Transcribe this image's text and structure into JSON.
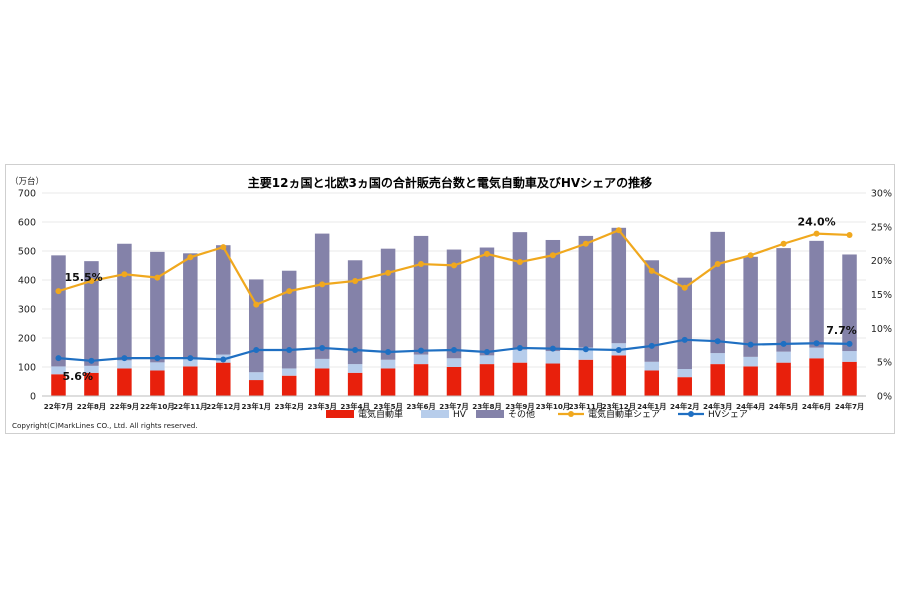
{
  "chart_data": {
    "type": "bar",
    "title": "主要12ヵ国と北欧3ヵ国の合計販売台数と電気自動車及びHVシェアの推移",
    "y_left_unit": "（万台）",
    "y_left_ticks": [
      "0",
      "100",
      "200",
      "300",
      "400",
      "500",
      "600",
      "700"
    ],
    "y_left_range": [
      0,
      700
    ],
    "y_right_ticks": [
      "0%",
      "5%",
      "10%",
      "15%",
      "20%",
      "25%",
      "30%"
    ],
    "y_right_range": [
      0,
      30
    ],
    "categories": [
      "22年7月",
      "22年8月",
      "22年9月",
      "22年10月",
      "22年11月",
      "22年12月",
      "23年1月",
      "23年2月",
      "23年3月",
      "23年4月",
      "23年5月",
      "23年6月",
      "23年7月",
      "23年8月",
      "23年9月",
      "23年10月",
      "23年11月",
      "23年12月",
      "24年1月",
      "24年2月",
      "24年3月",
      "24年4月",
      "24年5月",
      "24年6月",
      "24年7月"
    ],
    "stacked_series": [
      {
        "name": "電気自動車",
        "color": "#e8200c",
        "values": [
          75,
          80,
          95,
          88,
          102,
          115,
          55,
          70,
          95,
          80,
          95,
          110,
          100,
          110,
          115,
          112,
          125,
          140,
          88,
          65,
          110,
          102,
          115,
          130,
          118
        ]
      },
      {
        "name": "HV",
        "color": "#b7cdeb",
        "values": [
          27,
          24,
          28,
          28,
          27,
          28,
          27,
          25,
          33,
          30,
          30,
          33,
          30,
          30,
          45,
          43,
          42,
          42,
          30,
          28,
          38,
          33,
          38,
          37,
          37
        ]
      },
      {
        "name": "その他",
        "color": "#8482a9",
        "values": [
          383,
          361,
          402,
          381,
          363,
          377,
          320,
          337,
          432,
          358,
          383,
          409,
          375,
          372,
          405,
          383,
          385,
          398,
          350,
          315,
          418,
          345,
          357,
          368,
          333
        ]
      }
    ],
    "line_series": [
      {
        "name": "電気自動車シェア",
        "color": "#f0a81e",
        "axis": "right",
        "values": [
          15.5,
          17.0,
          18.0,
          17.5,
          20.5,
          22.0,
          13.5,
          15.5,
          16.5,
          17.0,
          18.2,
          19.5,
          19.3,
          21.0,
          19.8,
          20.8,
          22.5,
          24.5,
          18.5,
          16.0,
          19.5,
          20.8,
          22.5,
          24.0,
          23.8
        ]
      },
      {
        "name": "HVシェア",
        "color": "#1f6fc2",
        "axis": "right",
        "values": [
          5.6,
          5.2,
          5.6,
          5.6,
          5.6,
          5.4,
          6.8,
          6.8,
          7.1,
          6.8,
          6.5,
          6.7,
          6.8,
          6.5,
          7.1,
          7.0,
          6.9,
          6.8,
          7.4,
          8.3,
          8.1,
          7.6,
          7.7,
          7.8,
          7.7
        ]
      }
    ],
    "annotations": [
      {
        "text": "15.5%",
        "series": "電気自動車シェア",
        "index": 0
      },
      {
        "text": "5.6%",
        "series": "HVシェア",
        "index": 0
      },
      {
        "text": "24.0%",
        "series": "電気自動車シェア",
        "index": 23
      },
      {
        "text": "7.7%",
        "series": "HVシェア",
        "index": 24
      }
    ],
    "legend": [
      "電気自動車",
      "HV",
      "その他",
      "電気自動車シェア",
      "HVシェア"
    ],
    "legend_position": "bottom",
    "grid": true
  },
  "copyright": "Copyright(C)MarkLines CO., Ltd. All rights reserved."
}
